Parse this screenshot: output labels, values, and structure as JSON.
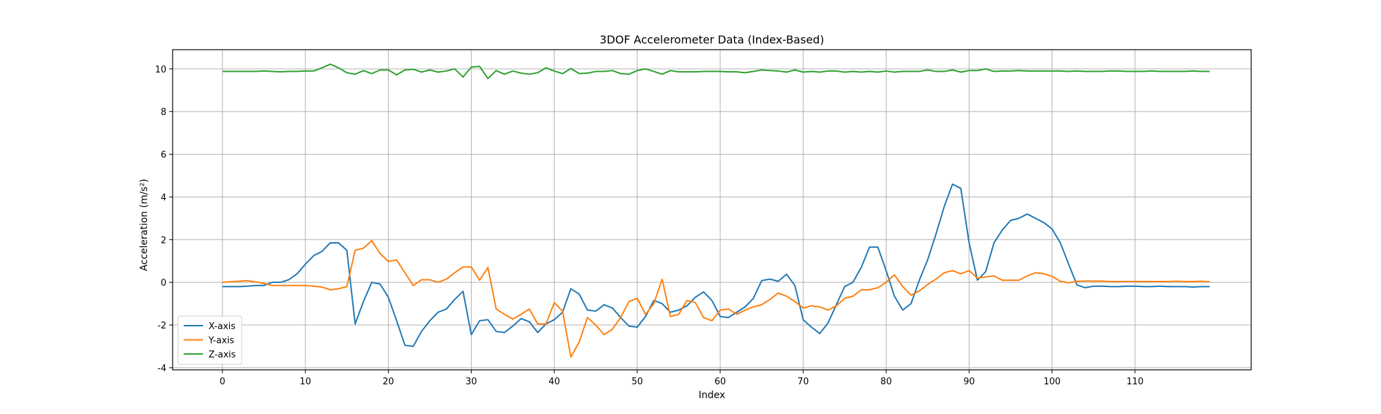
{
  "chart_data": {
    "type": "line",
    "title": "3DOF Accelerometer Data (Index-Based)",
    "xlabel": "Index",
    "ylabel": "Acceleration (m/s²)",
    "xlim": [
      -6,
      124
    ],
    "ylim": [
      -4.1,
      10.9
    ],
    "xticks": [
      0,
      10,
      20,
      30,
      40,
      50,
      60,
      70,
      80,
      90,
      100,
      110
    ],
    "yticks": [
      -4,
      -2,
      0,
      2,
      4,
      6,
      8,
      10
    ],
    "grid": true,
    "legend_position": "lower-left",
    "x": [
      0,
      1,
      2,
      3,
      4,
      5,
      6,
      7,
      8,
      9,
      10,
      11,
      12,
      13,
      14,
      15,
      16,
      17,
      18,
      19,
      20,
      21,
      22,
      23,
      24,
      25,
      26,
      27,
      28,
      29,
      30,
      31,
      32,
      33,
      34,
      35,
      36,
      37,
      38,
      39,
      40,
      41,
      42,
      43,
      44,
      45,
      46,
      47,
      48,
      49,
      50,
      51,
      52,
      53,
      54,
      55,
      56,
      57,
      58,
      59,
      60,
      61,
      62,
      63,
      64,
      65,
      66,
      67,
      68,
      69,
      70,
      71,
      72,
      73,
      74,
      75,
      76,
      77,
      78,
      79,
      80,
      81,
      82,
      83,
      84,
      85,
      86,
      87,
      88,
      89,
      90,
      91,
      92,
      93,
      94,
      95,
      96,
      97,
      98,
      99,
      100,
      101,
      102,
      103,
      104,
      105,
      106,
      107,
      108,
      109,
      110,
      111,
      112,
      113,
      114,
      115,
      116,
      117,
      118,
      119
    ],
    "series": [
      {
        "name": "X-axis",
        "color": "#1f77b4",
        "values": [
          -0.2,
          -0.2,
          -0.2,
          -0.18,
          -0.15,
          -0.15,
          0.0,
          0.0,
          0.12,
          0.4,
          0.85,
          1.25,
          1.45,
          1.85,
          1.85,
          1.5,
          -1.95,
          -0.9,
          0.0,
          -0.08,
          -0.7,
          -1.8,
          -2.95,
          -3.0,
          -2.3,
          -1.8,
          -1.4,
          -1.25,
          -0.8,
          -0.42,
          -2.45,
          -1.8,
          -1.75,
          -2.3,
          -2.35,
          -2.05,
          -1.7,
          -1.85,
          -2.35,
          -1.95,
          -1.75,
          -1.4,
          -0.3,
          -0.55,
          -1.3,
          -1.35,
          -1.05,
          -1.2,
          -1.65,
          -2.05,
          -2.1,
          -1.6,
          -0.85,
          -1.0,
          -1.4,
          -1.3,
          -1.1,
          -0.7,
          -0.45,
          -0.85,
          -1.6,
          -1.65,
          -1.4,
          -1.15,
          -0.75,
          0.08,
          0.15,
          0.05,
          0.38,
          -0.15,
          -1.75,
          -2.1,
          -2.4,
          -1.9,
          -1.05,
          -0.2,
          0.0,
          0.7,
          1.65,
          1.65,
          0.55,
          -0.65,
          -1.3,
          -1.0,
          0.1,
          1.05,
          2.25,
          3.55,
          4.6,
          4.4,
          1.85,
          0.1,
          0.5,
          1.85,
          2.45,
          2.9,
          3.0,
          3.2,
          3.0,
          2.8,
          2.5,
          1.85,
          0.85,
          -0.12,
          -0.25,
          -0.18,
          -0.18,
          -0.2,
          -0.2,
          -0.18,
          -0.18,
          -0.2,
          -0.2,
          -0.18,
          -0.2,
          -0.2,
          -0.2,
          -0.22,
          -0.2,
          -0.2
        ],
        "line_width": 2
      },
      {
        "name": "Y-axis",
        "color": "#ff7f0e",
        "values": [
          0.0,
          0.03,
          0.05,
          0.08,
          0.02,
          -0.05,
          -0.15,
          -0.15,
          -0.15,
          -0.15,
          -0.15,
          -0.18,
          -0.22,
          -0.35,
          -0.3,
          -0.2,
          1.5,
          1.6,
          1.95,
          1.35,
          0.98,
          1.05,
          0.45,
          -0.15,
          0.12,
          0.12,
          0.0,
          0.15,
          0.45,
          0.72,
          0.72,
          0.1,
          0.7,
          -1.25,
          -1.5,
          -1.72,
          -1.5,
          -1.25,
          -1.95,
          -1.95,
          -0.95,
          -1.35,
          -3.5,
          -2.8,
          -1.65,
          -2.0,
          -2.45,
          -2.2,
          -1.65,
          -0.9,
          -0.75,
          -1.5,
          -1.0,
          0.15,
          -1.6,
          -1.5,
          -0.85,
          -0.95,
          -1.65,
          -1.8,
          -1.3,
          -1.25,
          -1.5,
          -1.3,
          -1.15,
          -1.05,
          -0.8,
          -0.5,
          -0.65,
          -0.9,
          -1.2,
          -1.1,
          -1.15,
          -1.3,
          -1.1,
          -0.75,
          -0.65,
          -0.35,
          -0.35,
          -0.25,
          0.0,
          0.35,
          -0.2,
          -0.6,
          -0.4,
          -0.1,
          0.15,
          0.45,
          0.55,
          0.4,
          0.55,
          0.2,
          0.25,
          0.3,
          0.1,
          0.1,
          0.1,
          0.3,
          0.45,
          0.4,
          0.28,
          0.05,
          -0.02,
          0.05,
          0.06,
          0.06,
          0.06,
          0.04,
          0.04,
          0.04,
          0.04,
          0.04,
          0.04,
          0.04,
          0.04,
          0.05,
          0.04,
          0.04,
          0.05,
          0.03
        ],
        "line_width": 2
      },
      {
        "name": "Z-axis",
        "color": "#2ca02c",
        "values": [
          9.88,
          9.88,
          9.88,
          9.88,
          9.88,
          9.9,
          9.88,
          9.86,
          9.88,
          9.88,
          9.9,
          9.9,
          10.05,
          10.22,
          10.05,
          9.82,
          9.75,
          9.92,
          9.78,
          9.95,
          9.95,
          9.72,
          9.95,
          9.98,
          9.85,
          9.95,
          9.85,
          9.9,
          10.0,
          9.62,
          10.08,
          10.12,
          9.55,
          9.92,
          9.75,
          9.9,
          9.8,
          9.75,
          9.82,
          10.05,
          9.9,
          9.78,
          10.02,
          9.78,
          9.8,
          9.88,
          9.88,
          9.92,
          9.78,
          9.75,
          9.92,
          10.0,
          9.88,
          9.75,
          9.92,
          9.86,
          9.86,
          9.86,
          9.88,
          9.88,
          9.88,
          9.86,
          9.86,
          9.82,
          9.88,
          9.95,
          9.92,
          9.9,
          9.85,
          9.95,
          9.85,
          9.88,
          9.85,
          9.9,
          9.9,
          9.85,
          9.88,
          9.85,
          9.88,
          9.85,
          9.9,
          9.85,
          9.88,
          9.88,
          9.88,
          9.95,
          9.88,
          9.88,
          9.95,
          9.85,
          9.92,
          9.92,
          10.0,
          9.88,
          9.9,
          9.9,
          9.92,
          9.9,
          9.9,
          9.9,
          9.9,
          9.9,
          9.88,
          9.9,
          9.88,
          9.88,
          9.88,
          9.9,
          9.9,
          9.88,
          9.88,
          9.88,
          9.9,
          9.88,
          9.88,
          9.88,
          9.88,
          9.9,
          9.88,
          9.88
        ],
        "line_width": 2
      }
    ]
  }
}
